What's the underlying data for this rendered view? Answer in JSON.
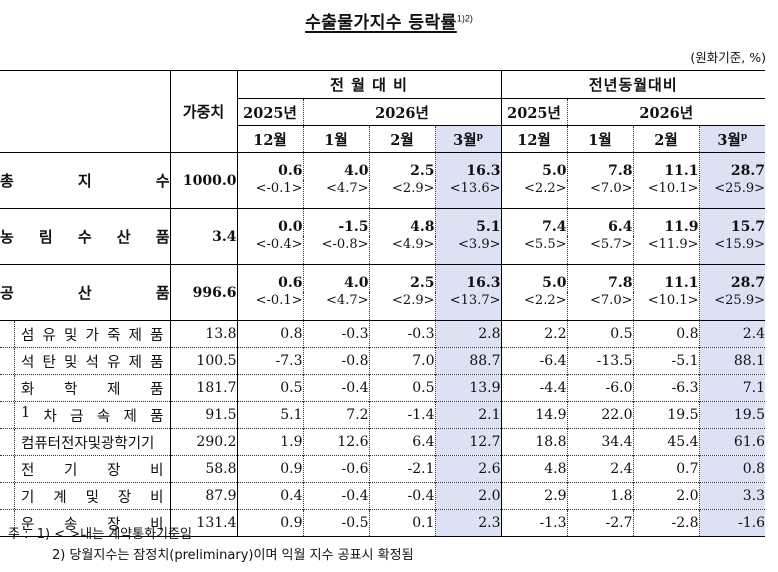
{
  "title": {
    "text": "수출물가지수 등락률",
    "superscript": "1)2)"
  },
  "unit": "(원화기준, %)",
  "header": {
    "weight_label": "가중치",
    "groups": [
      {
        "label": "전 월 대 비",
        "years": [
          "2025년",
          "2026년"
        ],
        "months": [
          "12월",
          "1월",
          "2월",
          "3월"
        ]
      },
      {
        "label": "전년동월대비",
        "years": [
          "2025년",
          "2026년"
        ],
        "months": [
          "12월",
          "1월",
          "2월",
          "3월"
        ]
      }
    ],
    "preliminary_mark": "p"
  },
  "highlight_color": "#dce2f4",
  "main_rows": [
    {
      "label_chars": [
        "총",
        "지",
        "수"
      ],
      "weight": "1000.0",
      "values": [
        "0.6",
        "4.0",
        "2.5",
        "16.3",
        "5.0",
        "7.8",
        "11.1",
        "28.7"
      ],
      "contract": [
        "<-0.1>",
        "<4.7>",
        "<2.9>",
        "<13.6>",
        "<2.2>",
        "<7.0>",
        "<10.1>",
        "<25.9>"
      ]
    },
    {
      "label_chars": [
        "농",
        "림",
        "수",
        "산",
        "품"
      ],
      "weight": "3.4",
      "values": [
        "0.0",
        "-1.5",
        "4.8",
        "5.1",
        "7.4",
        "6.4",
        "11.9",
        "15.7"
      ],
      "contract": [
        "<-0.4>",
        "<-0.8>",
        "<4.9>",
        "<3.9>",
        "<5.5>",
        "<5.7>",
        "<11.9>",
        "<15.9>"
      ]
    },
    {
      "label_chars": [
        "공",
        "산",
        "품"
      ],
      "weight": "996.6",
      "values": [
        "0.6",
        "4.0",
        "2.5",
        "16.3",
        "5.0",
        "7.8",
        "11.1",
        "28.7"
      ],
      "contract": [
        "<-0.1>",
        "<4.7>",
        "<2.9>",
        "<13.7>",
        "<2.2>",
        "<7.0>",
        "<10.1>",
        "<25.9>"
      ]
    }
  ],
  "sub_rows": [
    {
      "label_chars": [
        "섬",
        "유",
        "및",
        "가",
        "죽",
        "제",
        "품"
      ],
      "weight": "13.8",
      "values": [
        "0.8",
        "-0.3",
        "-0.3",
        "2.8",
        "2.2",
        "0.5",
        "0.8",
        "2.4"
      ]
    },
    {
      "label_chars": [
        "석",
        "탄",
        "및",
        "석",
        "유",
        "제",
        "품"
      ],
      "weight": "100.5",
      "values": [
        "-7.3",
        "-0.8",
        "7.0",
        "88.7",
        "-6.4",
        "-13.5",
        "-5.1",
        "88.1"
      ]
    },
    {
      "label_chars": [
        "화",
        "학",
        "제",
        "품"
      ],
      "weight": "181.7",
      "values": [
        "0.5",
        "-0.4",
        "0.5",
        "13.9",
        "-4.4",
        "-6.0",
        "-6.3",
        "7.1"
      ]
    },
    {
      "label_chars": [
        "1",
        "차",
        "금",
        "속",
        "제",
        "품"
      ],
      "weight": "91.5",
      "values": [
        "5.1",
        "7.2",
        "-1.4",
        "2.1",
        "14.9",
        "22.0",
        "19.5",
        "19.5"
      ]
    },
    {
      "label_chars": [
        "컴퓨터전자및광학기기"
      ],
      "weight": "290.2",
      "values": [
        "1.9",
        "12.6",
        "6.4",
        "12.7",
        "18.8",
        "34.4",
        "45.4",
        "61.6"
      ]
    },
    {
      "label_chars": [
        "전",
        "기",
        "장",
        "비"
      ],
      "weight": "58.8",
      "values": [
        "0.9",
        "-0.6",
        "-2.1",
        "2.6",
        "4.8",
        "2.4",
        "0.7",
        "0.8"
      ]
    },
    {
      "label_chars": [
        "기",
        "계",
        "및",
        "장",
        "비"
      ],
      "weight": "87.9",
      "values": [
        "0.4",
        "-0.4",
        "-0.4",
        "2.0",
        "2.9",
        "1.8",
        "2.0",
        "3.3"
      ]
    },
    {
      "label_chars": [
        "운",
        "송",
        "장",
        "비"
      ],
      "weight": "131.4",
      "values": [
        "0.9",
        "-0.5",
        "0.1",
        "2.3",
        "-1.3",
        "-2.7",
        "-2.8",
        "-1.6"
      ]
    }
  ],
  "notes": {
    "prefix": "주 :",
    "items": [
      "1) < >내는 계약통화기준임",
      "2) 당월지수는 잠정치(preliminary)이며 익월 지수 공표시 확정됨"
    ]
  }
}
